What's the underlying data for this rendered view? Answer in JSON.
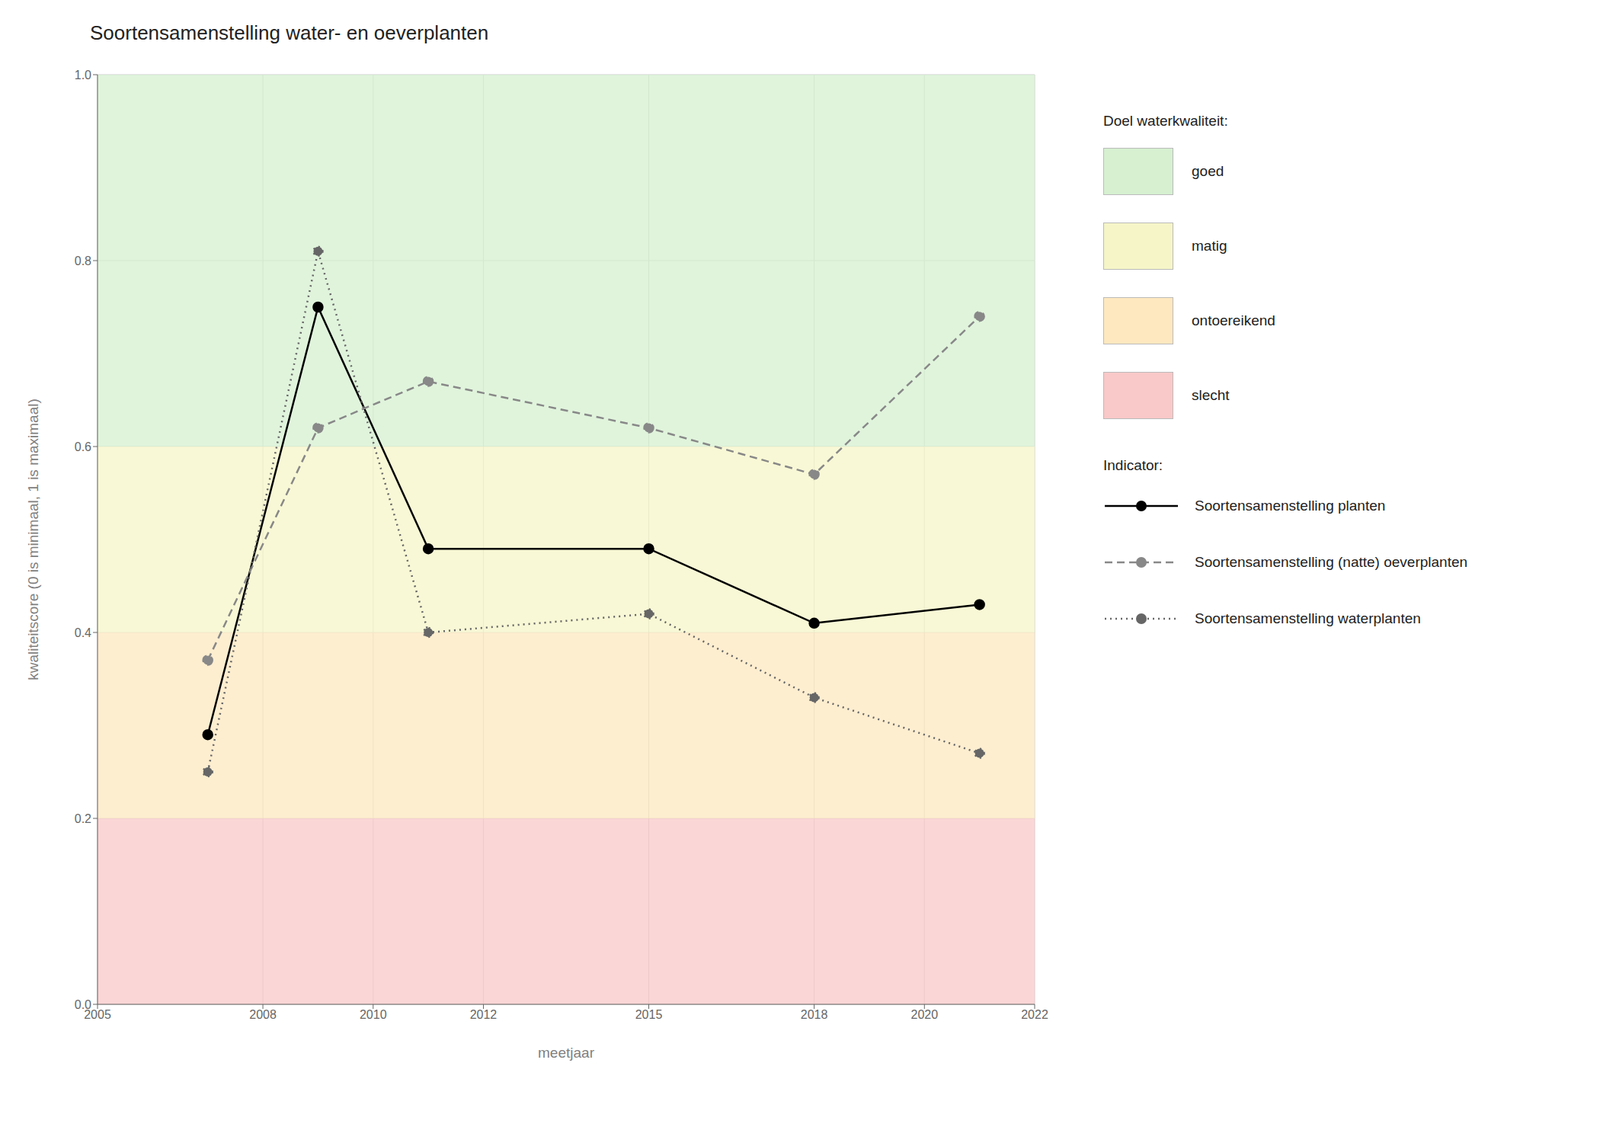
{
  "chart_data": {
    "type": "line",
    "title": "Soortensamenstelling water- en oeverplanten",
    "x_label": "meetjaar",
    "y_label": "kwaliteitscore (0 is minimaal, 1 is maximaal)",
    "xlim": [
      2005,
      2022
    ],
    "ylim": [
      0,
      1
    ],
    "xticks": [
      2005,
      2008,
      2010,
      2012,
      2015,
      2018,
      2020,
      2022
    ],
    "yticks": [
      {
        "value": 0,
        "label": "0.0"
      },
      0.2,
      0.4,
      0.6,
      0.8,
      {
        "value": 1,
        "label": "1.0"
      }
    ],
    "grid": true,
    "x": [
      2007,
      2009,
      2011,
      2015,
      2018,
      2021
    ],
    "series": [
      {
        "name": "Soortensamenstelling planten",
        "color": "#000000",
        "line_style": "solid",
        "marker": "circle",
        "values": [
          0.29,
          0.75,
          0.49,
          0.49,
          0.41,
          0.43
        ]
      },
      {
        "name": "Soortensamenstelling (natte) oeverplanten",
        "color": "#888888",
        "line_style": "dashed",
        "marker": "circle",
        "values": [
          0.37,
          0.62,
          0.67,
          0.62,
          0.57,
          0.74
        ]
      },
      {
        "name": "Soortensamenstelling waterplanten",
        "color": "#666666",
        "line_style": "dotted",
        "marker": "circle",
        "values": [
          0.25,
          0.81,
          0.4,
          0.42,
          0.33,
          0.27
        ]
      }
    ],
    "band_legend_title": "Doel waterkwaliteit:",
    "series_legend_title": "Indicator:",
    "bands": [
      {
        "label": "goed",
        "from": 0.6,
        "to": 1.0,
        "color": "#d6f0d0"
      },
      {
        "label": "matig",
        "from": 0.4,
        "to": 0.6,
        "color": "#f5f5c8"
      },
      {
        "label": "ontoereikend",
        "from": 0.2,
        "to": 0.4,
        "color": "#fde8c0"
      },
      {
        "label": "slecht",
        "from": 0.0,
        "to": 0.2,
        "color": "#f9c8c8"
      }
    ]
  }
}
